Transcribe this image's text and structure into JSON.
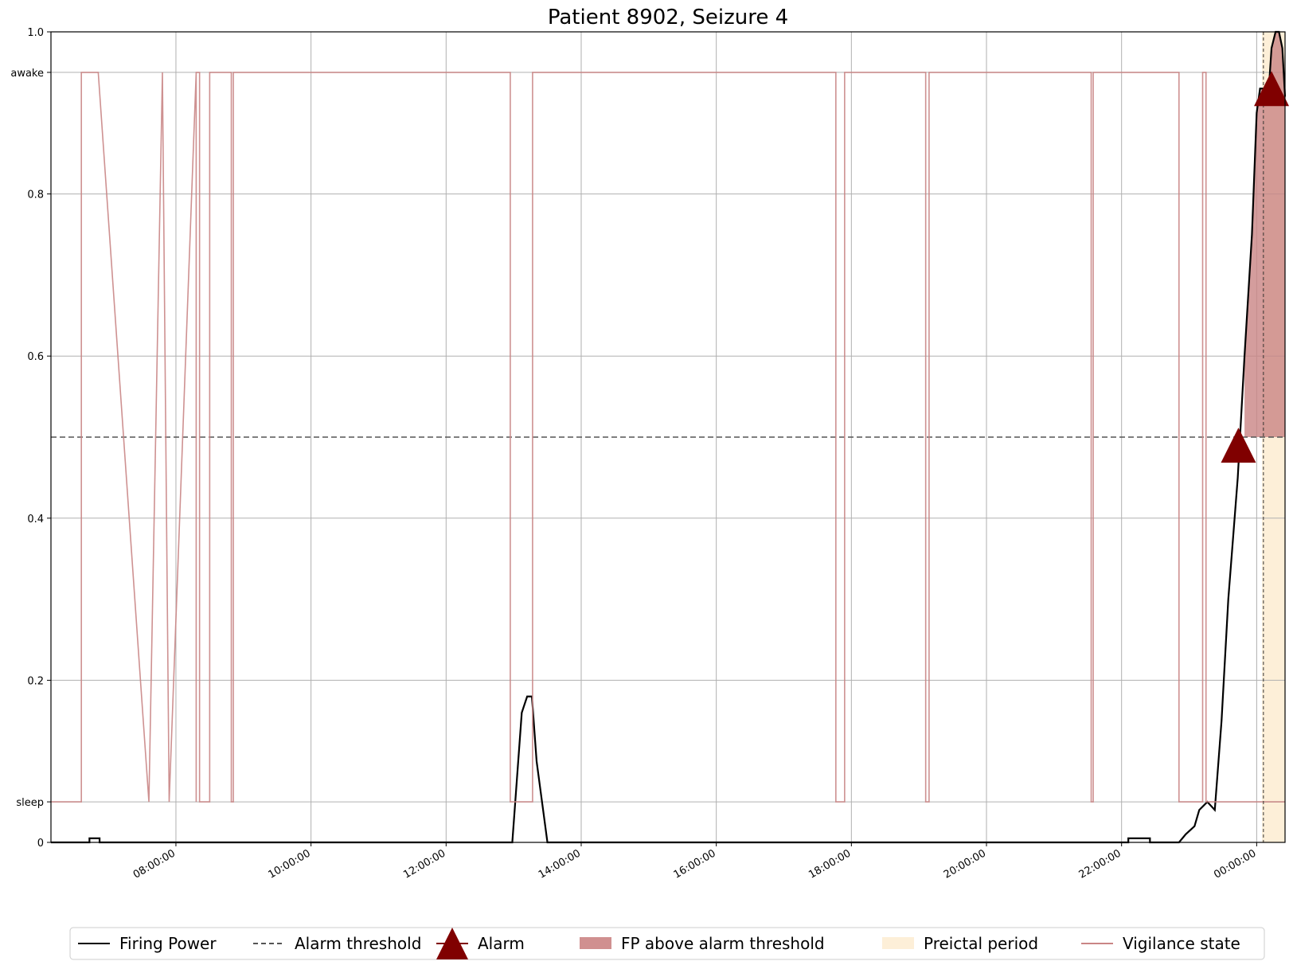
{
  "chart_data": {
    "type": "line",
    "title": "Patient 8902, Seizure 4",
    "xlabel": "",
    "ylabel": "",
    "x_unit": "hours (24h clock, relative to start of recording day)",
    "xlim": [
      6.15,
      24.42
    ],
    "ylim": [
      0,
      1.0
    ],
    "y_ticks": [
      {
        "value": 0,
        "label": "0"
      },
      {
        "value": 0.05,
        "label": "sleep"
      },
      {
        "value": 0.2,
        "label": "0.2"
      },
      {
        "value": 0.4,
        "label": "0.4"
      },
      {
        "value": 0.6,
        "label": "0.6"
      },
      {
        "value": 0.8,
        "label": "0.8"
      },
      {
        "value": 0.95,
        "label": "awake"
      },
      {
        "value": 1.0,
        "label": "1.0"
      }
    ],
    "x_ticks": [
      {
        "value": 8,
        "label": "08:00:00"
      },
      {
        "value": 10,
        "label": "10:00:00"
      },
      {
        "value": 12,
        "label": "12:00:00"
      },
      {
        "value": 14,
        "label": "14:00:00"
      },
      {
        "value": 16,
        "label": "16:00:00"
      },
      {
        "value": 18,
        "label": "18:00:00"
      },
      {
        "value": 20,
        "label": "20:00:00"
      },
      {
        "value": 22,
        "label": "22:00:00"
      },
      {
        "value": 24,
        "label": "00:00:00"
      }
    ],
    "grid": true,
    "legend_position": "bottom",
    "alarm_threshold": 0.5,
    "seizure_onset": 24.1,
    "preictal_period": [
      24.08,
      24.42
    ],
    "series": [
      {
        "name": "Firing Power",
        "color": "#000000",
        "x": [
          6.15,
          6.72,
          6.72,
          6.87,
          6.87,
          12.98,
          13.05,
          13.12,
          13.2,
          13.27,
          13.34,
          13.42,
          13.5,
          13.58,
          13.58,
          22.1,
          22.1,
          22.42,
          22.42,
          22.85,
          22.95,
          23.08,
          23.15,
          23.27,
          23.38,
          23.48,
          23.58,
          23.72,
          23.82,
          23.93,
          24.0,
          24.05,
          24.1,
          24.18,
          24.22,
          24.28,
          24.33,
          24.38,
          24.42
        ],
        "y": [
          0,
          0,
          0.005,
          0.005,
          0,
          0,
          0.08,
          0.16,
          0.18,
          0.18,
          0.1,
          0.05,
          0,
          0,
          0,
          0,
          0.005,
          0.005,
          0,
          0,
          0.01,
          0.02,
          0.04,
          0.05,
          0.04,
          0.15,
          0.3,
          0.45,
          0.6,
          0.75,
          0.9,
          0.93,
          0.93,
          0.93,
          0.98,
          1.0,
          1.0,
          0.98,
          0.92
        ]
      },
      {
        "name": "Alarm threshold",
        "color": "#555555",
        "style": "dashed",
        "x": [
          6.15,
          24.42
        ],
        "y": [
          0.5,
          0.5
        ]
      },
      {
        "name": "Vigilance state",
        "color": "#c98585",
        "x": [
          6.15,
          6.6,
          6.6,
          6.85,
          7.6,
          7.6,
          7.8,
          7.8,
          7.9,
          7.9,
          8.3,
          8.3,
          8.3,
          8.3,
          8.35,
          8.35,
          8.5,
          8.5,
          8.82,
          8.82,
          8.85,
          8.85,
          12.95,
          12.95,
          13.28,
          13.28,
          17.77,
          17.77,
          17.9,
          17.9,
          19.1,
          19.1,
          19.15,
          19.15,
          21.55,
          21.55,
          21.58,
          21.58,
          22.85,
          22.85,
          23.2,
          23.2,
          23.25,
          23.25,
          23.48,
          23.48,
          24.42
        ],
        "y": [
          0.05,
          0.05,
          0.95,
          0.95,
          0.05,
          0.05,
          0.95,
          0.95,
          0.05,
          0.05,
          0.95,
          0.95,
          0.05,
          0.95,
          0.95,
          0.05,
          0.05,
          0.95,
          0.95,
          0.05,
          0.05,
          0.95,
          0.95,
          0.05,
          0.05,
          0.95,
          0.95,
          0.05,
          0.05,
          0.95,
          0.95,
          0.05,
          0.05,
          0.95,
          0.95,
          0.05,
          0.05,
          0.95,
          0.95,
          0.05,
          0.05,
          0.95,
          0.95,
          0.05,
          0.05,
          0.05,
          0.05
        ]
      }
    ],
    "alarms": [
      {
        "x": 23.73,
        "y": 0.49
      },
      {
        "x": 24.22,
        "y": 0.93
      }
    ],
    "fp_above_threshold_region": {
      "name": "FP above alarm threshold",
      "color": "#c98585",
      "x_start": 23.8,
      "x_end": 24.42
    },
    "legend": [
      {
        "label": "Firing Power",
        "kind": "line",
        "color": "#000000"
      },
      {
        "label": "Alarm threshold",
        "kind": "dashed",
        "color": "#555555"
      },
      {
        "label": "Alarm",
        "kind": "triangle",
        "color": "#800000"
      },
      {
        "label": "FP above alarm threshold",
        "kind": "patch",
        "color": "#d09090"
      },
      {
        "label": "Preictal period",
        "kind": "patch",
        "color": "#fdefd8"
      },
      {
        "label": "Vigilance state",
        "kind": "line",
        "color": "#c98585"
      }
    ]
  }
}
